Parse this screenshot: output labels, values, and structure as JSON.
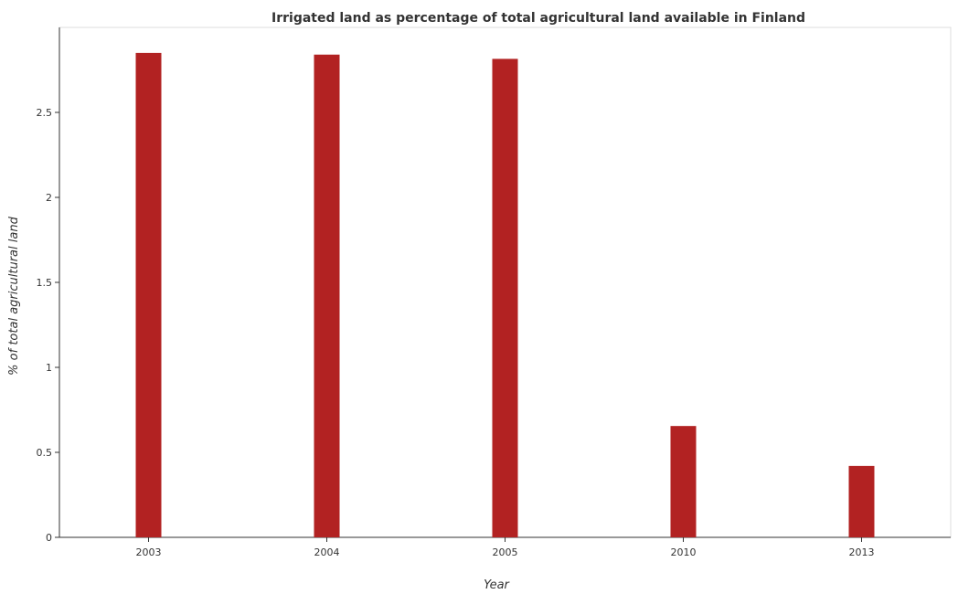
{
  "chart_data": {
    "type": "bar",
    "title": "Irrigated land as percentage of total agricultural land available in Finland",
    "xlabel": "Year",
    "ylabel": "% of total agricultural land",
    "categories": [
      "2003",
      "2004",
      "2005",
      "2010",
      "2013"
    ],
    "values": [
      2.85,
      2.84,
      2.815,
      0.655,
      0.42
    ],
    "ylim": [
      0,
      3.0
    ],
    "yticks": [
      0,
      0.5,
      1,
      1.5,
      2,
      2.5
    ],
    "ytick_labels": [
      "0",
      "0.5",
      "1",
      "1.5",
      "2",
      "2.5"
    ],
    "bar_color": "#b22222",
    "grid": false,
    "legend": "none"
  }
}
